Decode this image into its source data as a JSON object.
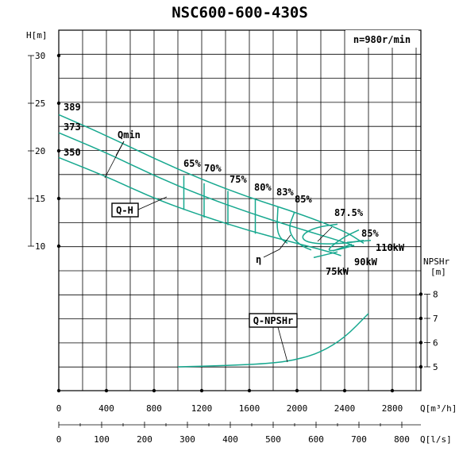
{
  "chart_data": {
    "type": "line",
    "title": "NSC600-600-430S",
    "speed_label": "n=980r/min",
    "left_axis": {
      "label": "H[m]",
      "ticks": [
        "30",
        "25",
        "20",
        "15",
        "10"
      ],
      "values": [
        30,
        25,
        20,
        15,
        10
      ]
    },
    "right_axis": {
      "label_top": "NPSHr",
      "label_bottom": "[m]",
      "ticks": [
        "8",
        "7",
        "6",
        "5"
      ],
      "values": [
        8,
        7,
        6,
        5
      ]
    },
    "x_axis_top": {
      "label": "Q[m³/h]",
      "ticks": [
        "0",
        "400",
        "800",
        "1200",
        "1600",
        "2000",
        "2400",
        "2800"
      ],
      "values": [
        0,
        400,
        800,
        1200,
        1600,
        2000,
        2400,
        2800
      ]
    },
    "x_axis_bottom": {
      "label": "Q[l/s]",
      "ticks": [
        "0",
        "100",
        "200",
        "300",
        "400",
        "500",
        "600",
        "700",
        "800"
      ],
      "values": [
        0,
        100,
        200,
        300,
        400,
        500,
        600,
        700,
        800
      ]
    },
    "impeller_labels": [
      "389",
      "373",
      "350"
    ],
    "series": [
      {
        "name": "389",
        "x": [
          0,
          400,
          800,
          1200,
          1600,
          2000,
          2400,
          2560
        ],
        "y": [
          23.8,
          21.6,
          19.2,
          17.0,
          15.1,
          13.5,
          11.6,
          10.3
        ]
      },
      {
        "name": "373",
        "x": [
          0,
          400,
          800,
          1200,
          1600,
          2000,
          2400,
          2480
        ],
        "y": [
          21.9,
          19.8,
          17.4,
          15.3,
          13.5,
          11.9,
          10.4,
          10.0
        ]
      },
      {
        "name": "350",
        "x": [
          0,
          400,
          800,
          1200,
          1600,
          2000,
          2300,
          2370
        ],
        "y": [
          19.3,
          17.3,
          15.0,
          13.2,
          11.6,
          10.3,
          9.3,
          9.0
        ]
      }
    ],
    "efficiency_labels": [
      "65%",
      "70%",
      "75%",
      "80%",
      "83%",
      "85%",
      "87.5%",
      "85%"
    ],
    "efficiency_iso": [
      {
        "x": [
          1050,
          1050
        ],
        "y": [
          17.4,
          13.8
        ]
      },
      {
        "x": [
          1220,
          1220
        ],
        "y": [
          16.6,
          13.0
        ]
      },
      {
        "x": [
          1420,
          1420
        ],
        "y": [
          15.8,
          12.2
        ]
      },
      {
        "x": [
          1650,
          1650
        ],
        "y": [
          14.9,
          11.3
        ]
      },
      {
        "x": [
          1840,
          1830,
          1860,
          1920
        ],
        "y": [
          14.1,
          11.8,
          10.8,
          10.3
        ]
      },
      {
        "x": [
          1980,
          1930,
          1960,
          2040,
          2120
        ],
        "y": [
          13.6,
          12.0,
          10.9,
          10.0,
          9.6
        ]
      },
      {
        "x": [
          2340,
          2160,
          2040,
          2060,
          2200,
          2400,
          2560
        ],
        "y": [
          12.3,
          12.0,
          11.2,
          10.5,
          10.2,
          10.3,
          10.6
        ]
      },
      {
        "x": [
          2520,
          2400,
          2300,
          2260,
          2300,
          2400,
          2480
        ],
        "y": [
          11.7,
          11.0,
          10.1,
          9.6,
          9.5,
          9.8,
          10.1
        ]
      }
    ],
    "power_labels": [
      "110kW",
      "90kW",
      "75kW"
    ],
    "power_curves": [
      {
        "x": [
          2420,
          2620
        ],
        "y": [
          10.4,
          10.6
        ]
      },
      {
        "x": [
          2300,
          2460
        ],
        "y": [
          9.5,
          10.2
        ]
      },
      {
        "x": [
          2140,
          2340
        ],
        "y": [
          8.8,
          9.4
        ]
      }
    ],
    "qmin_label": "Qmin",
    "qmin_line": {
      "x": [
        640,
        1000,
        1250
      ],
      "y": [
        18.5,
        16.7,
        15.4
      ]
    },
    "qh_label": "Q-H",
    "eta_label": "η",
    "npsh_label": "Q-NPSHr",
    "npsh": {
      "x": [
        1000,
        1400,
        1800,
        2000,
        2200,
        2400,
        2600
      ],
      "y": [
        5.0,
        5.05,
        5.15,
        5.3,
        5.6,
        6.2,
        7.2
      ]
    }
  }
}
